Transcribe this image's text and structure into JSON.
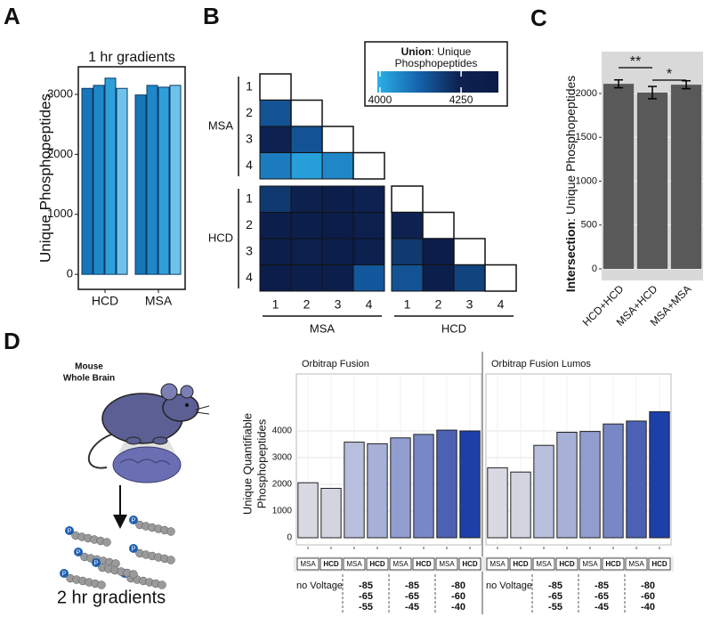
{
  "panel_labels": [
    "A",
    "B",
    "C",
    "D"
  ],
  "illustration": {
    "sample": [
      "Mouse",
      "Whole Brain"
    ],
    "caption": "2 hr gradients",
    "phospho_symbol": "P"
  },
  "chart_data": [
    {
      "type": "grouped_bar",
      "title": "1 hr gradients",
      "ylabel": "Unique Phosphopeptides",
      "categories": [
        "HCD",
        "MSA"
      ],
      "values": [
        [
          3100,
          3150,
          3270,
          3100
        ],
        [
          2990,
          3150,
          3120,
          3150
        ]
      ],
      "colors": [
        "#1776b8",
        "#2088c8",
        "#2f9fd9",
        "#6fc3ea"
      ],
      "ylim": [
        -250,
        3460
      ],
      "yticks": [
        0,
        1000,
        2000,
        3000
      ]
    },
    {
      "type": "heatmap",
      "colorbar_title": [
        "Union",
        ": Unique",
        "Phosphopeptides"
      ],
      "row_groups": [
        "MSA",
        "HCD"
      ],
      "col_groups": [
        "MSA",
        "HCD"
      ],
      "labels": [
        "1",
        "2",
        "3",
        "4"
      ],
      "values": [
        [
          null,
          null,
          null,
          null,
          null,
          null,
          null,
          null
        ],
        [
          4150,
          null,
          null,
          null,
          null,
          null,
          null,
          null
        ],
        [
          4250,
          4150,
          null,
          null,
          null,
          null,
          null,
          null
        ],
        [
          4080,
          4020,
          4060,
          null,
          null,
          null,
          null,
          null
        ],
        [
          4200,
          4270,
          4300,
          4250,
          null,
          null,
          null,
          null
        ],
        [
          4300,
          4300,
          4320,
          4290,
          4260,
          null,
          null,
          null
        ],
        [
          4300,
          4290,
          4310,
          4280,
          4200,
          4320,
          null,
          null
        ],
        [
          4330,
          4300,
          4310,
          4140,
          4150,
          4310,
          4180,
          null
        ]
      ],
      "clim": [
        3992,
        4365
      ],
      "cticks": [
        4000,
        4250
      ],
      "colorscale": [
        "#2bb0e8",
        "#1565ad",
        "#0d2352",
        "#0b1a45"
      ]
    },
    {
      "type": "bar_error",
      "ylabel": [
        "Intersection",
        ": Unique Phosphopeptides"
      ],
      "categories": [
        "HCD+HCD",
        "MSA+HCD",
        "MSA+MSA"
      ],
      "values": [
        2110,
        2010,
        2100
      ],
      "errors": [
        45,
        70,
        45
      ],
      "color": "#595959",
      "significance": [
        "**",
        "*"
      ],
      "ylim": [
        -132,
        2477
      ],
      "yticks": [
        0,
        500,
        1000,
        1500,
        2000
      ],
      "grid": true
    },
    {
      "type": "faceted_bar",
      "ylabel": [
        "Unique Quantifiable",
        "Phosphopeptides"
      ],
      "facets": [
        {
          "title": "Orbitrap Fusion",
          "values": [
            2060,
            1850,
            3580,
            3520,
            3740,
            3870,
            4030,
            4000
          ]
        },
        {
          "title": "Orbitrap Fusion Lumos",
          "values": [
            2620,
            2460,
            3460,
            3950,
            3980,
            4260,
            4370,
            4720
          ]
        }
      ],
      "colors": [
        "#d8d9e3",
        "#d2d4e0",
        "#b8bfdc",
        "#a7b0d6",
        "#919dcf",
        "#7887c5",
        "#4c61b4",
        "#1c40a8"
      ],
      "methods": [
        "MSA",
        "HCD",
        "MSA",
        "HCD",
        "MSA",
        "HCD",
        "MSA",
        "HCD"
      ],
      "voltages": [
        [
          "no Voltage"
        ],
        [
          "-85",
          "-65",
          "-55"
        ],
        [
          "-85",
          "-65",
          "-45"
        ],
        [
          "-80",
          "-60",
          "-40"
        ]
      ],
      "ylim": [
        -267,
        5800
      ],
      "yticks": [
        0,
        1000,
        2000,
        3000,
        4000
      ],
      "grid": true
    }
  ]
}
